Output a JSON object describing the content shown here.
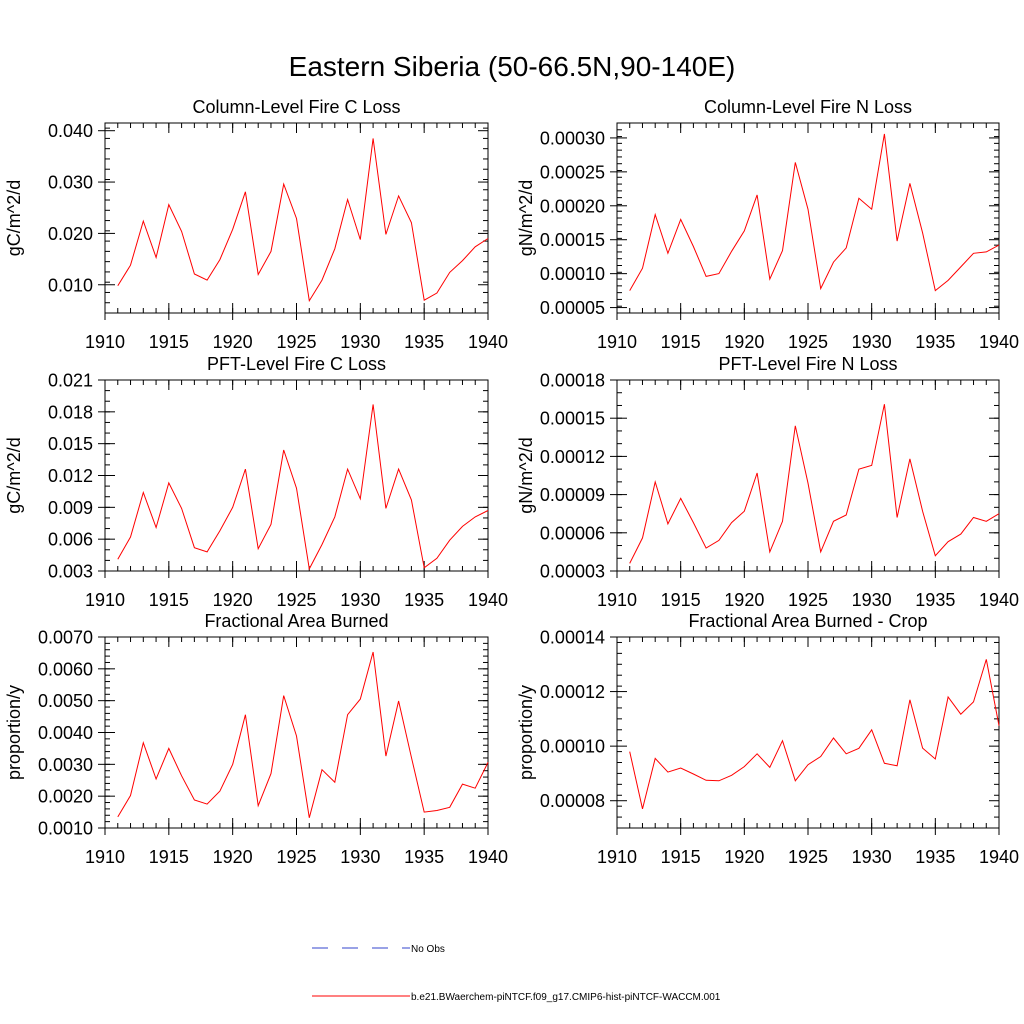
{
  "figure_title": "Eastern Siberia (50-66.5N,90-140E)",
  "legend": {
    "obs_label": "No Obs",
    "obs_color": "#3344cc",
    "model_label": "b.e21.BWaerchem-piNTCF.f09_g17.CMIP6-hist-piNTCF-WACCM.001",
    "model_color": "#ff0000"
  },
  "chart_data": [
    {
      "type": "line",
      "title": "Column-Level Fire C Loss",
      "ylabel": "gC/m^2/d",
      "xlim": [
        1910,
        1940
      ],
      "ylim": [
        0.0045,
        0.0415
      ],
      "xticks": [
        1910,
        1915,
        1920,
        1925,
        1930,
        1935,
        1940
      ],
      "xtick_labels": [
        "1910",
        "1915",
        "1920",
        "1925",
        "1930",
        "1935",
        "1940"
      ],
      "yticks": [
        0.01,
        0.02,
        0.03,
        0.04
      ],
      "ytick_labels": [
        "0.010",
        "0.020",
        "0.030",
        "0.040"
      ],
      "y_minor_step": 0.002,
      "x": [
        1911,
        1912,
        1913,
        1914,
        1915,
        1916,
        1917,
        1918,
        1919,
        1920,
        1921,
        1922,
        1923,
        1924,
        1925,
        1926,
        1927,
        1928,
        1929,
        1930,
        1931,
        1932,
        1933,
        1934,
        1935,
        1936,
        1937,
        1938,
        1939,
        1940
      ],
      "series": [
        {
          "name": "b.e21.BWaerchem-piNTCF.f09_g17.CMIP6-hist-piNTCF-WACCM.001",
          "color": "#ff0000",
          "values": [
            0.0098,
            0.0138,
            0.0224,
            0.0153,
            0.0256,
            0.0204,
            0.0121,
            0.0109,
            0.0149,
            0.0208,
            0.0281,
            0.012,
            0.0165,
            0.0296,
            0.0229,
            0.0069,
            0.0109,
            0.017,
            0.0266,
            0.0188,
            0.0385,
            0.0198,
            0.0273,
            0.0221,
            0.007,
            0.0084,
            0.0124,
            0.0147,
            0.0174,
            0.019
          ]
        }
      ]
    },
    {
      "type": "line",
      "title": "Column-Level Fire N Loss",
      "ylabel": "gN/m^2/d",
      "xlim": [
        1910,
        1940
      ],
      "ylim": [
        4.2e-05,
        0.000322
      ],
      "xticks": [
        1910,
        1915,
        1920,
        1925,
        1930,
        1935,
        1940
      ],
      "xtick_labels": [
        "1910",
        "1915",
        "1920",
        "1925",
        "1930",
        "1935",
        "1940"
      ],
      "yticks": [
        5e-05,
        0.0001,
        0.00015,
        0.0002,
        0.00025,
        0.0003
      ],
      "ytick_labels": [
        "0.00005",
        "0.00010",
        "0.00015",
        "0.00020",
        "0.00025",
        "0.00030"
      ],
      "y_minor_step": 1e-05,
      "x": [
        1911,
        1912,
        1913,
        1914,
        1915,
        1916,
        1917,
        1918,
        1919,
        1920,
        1921,
        1922,
        1923,
        1924,
        1925,
        1926,
        1927,
        1928,
        1929,
        1930,
        1931,
        1932,
        1933,
        1934,
        1935,
        1936,
        1937,
        1938,
        1939,
        1940
      ],
      "series": [
        {
          "name": "b.e21.BWaerchem-piNTCF.f09_g17.CMIP6-hist-piNTCF-WACCM.001",
          "color": "#ff0000",
          "values": [
            7.5e-05,
            0.000108,
            0.000187,
            0.00013,
            0.00018,
            0.00014,
            9.6e-05,
            0.0001,
            0.000133,
            0.000163,
            0.000216,
            9.2e-05,
            0.000134,
            0.000264,
            0.000195,
            7.8e-05,
            0.000117,
            0.000138,
            0.000211,
            0.000195,
            0.000306,
            0.000148,
            0.000233,
            0.00016,
            7.5e-05,
            9e-05,
            0.00011,
            0.00013,
            0.000132,
            0.000142
          ]
        }
      ]
    },
    {
      "type": "line",
      "title": "PFT-Level Fire C Loss",
      "ylabel": "gC/m^2/d",
      "xlim": [
        1910,
        1940
      ],
      "ylim": [
        0.003,
        0.021
      ],
      "xticks": [
        1910,
        1915,
        1920,
        1925,
        1930,
        1935,
        1940
      ],
      "xtick_labels": [
        "1910",
        "1915",
        "1920",
        "1925",
        "1930",
        "1935",
        "1940"
      ],
      "yticks": [
        0.003,
        0.006,
        0.009,
        0.012,
        0.015,
        0.018,
        0.021
      ],
      "ytick_labels": [
        "0.003",
        "0.006",
        "0.009",
        "0.012",
        "0.015",
        "0.018",
        "0.021"
      ],
      "y_minor_step": 0.001,
      "x": [
        1911,
        1912,
        1913,
        1914,
        1915,
        1916,
        1917,
        1918,
        1919,
        1920,
        1921,
        1922,
        1923,
        1924,
        1925,
        1926,
        1927,
        1928,
        1929,
        1930,
        1931,
        1932,
        1933,
        1934,
        1935,
        1936,
        1937,
        1938,
        1939,
        1940
      ],
      "series": [
        {
          "name": "b.e21.BWaerchem-piNTCF.f09_g17.CMIP6-hist-piNTCF-WACCM.001",
          "color": "#ff0000",
          "values": [
            0.0041,
            0.0062,
            0.0104,
            0.0071,
            0.0113,
            0.0089,
            0.0052,
            0.0048,
            0.0068,
            0.009,
            0.0126,
            0.0051,
            0.0074,
            0.0144,
            0.0108,
            0.0032,
            0.0055,
            0.0081,
            0.0126,
            0.0098,
            0.0187,
            0.0089,
            0.0126,
            0.0097,
            0.0033,
            0.0042,
            0.0059,
            0.0072,
            0.0081,
            0.0087
          ]
        }
      ]
    },
    {
      "type": "line",
      "title": "PFT-Level Fire N Loss",
      "ylabel": "gN/m^2/d",
      "xlim": [
        1910,
        1940
      ],
      "ylim": [
        3e-05,
        0.00018
      ],
      "xticks": [
        1910,
        1915,
        1920,
        1925,
        1930,
        1935,
        1940
      ],
      "xtick_labels": [
        "1910",
        "1915",
        "1920",
        "1925",
        "1930",
        "1935",
        "1940"
      ],
      "yticks": [
        3e-05,
        6e-05,
        9e-05,
        0.00012,
        0.00015,
        0.00018
      ],
      "ytick_labels": [
        "0.00003",
        "0.00006",
        "0.00009",
        "0.00012",
        "0.00015",
        "0.00018"
      ],
      "y_minor_step": 1e-05,
      "x": [
        1911,
        1912,
        1913,
        1914,
        1915,
        1916,
        1917,
        1918,
        1919,
        1920,
        1921,
        1922,
        1923,
        1924,
        1925,
        1926,
        1927,
        1928,
        1929,
        1930,
        1931,
        1932,
        1933,
        1934,
        1935,
        1936,
        1937,
        1938,
        1939,
        1940
      ],
      "series": [
        {
          "name": "b.e21.BWaerchem-piNTCF.f09_g17.CMIP6-hist-piNTCF-WACCM.001",
          "color": "#ff0000",
          "values": [
            3.6e-05,
            5.6e-05,
            0.0001,
            6.7e-05,
            8.7e-05,
            6.8e-05,
            4.8e-05,
            5.4e-05,
            6.8e-05,
            7.7e-05,
            0.000107,
            4.5e-05,
            6.9e-05,
            0.000144,
            9.9e-05,
            4.5e-05,
            6.9e-05,
            7.4e-05,
            0.00011,
            0.000113,
            0.000161,
            7.2e-05,
            0.000118,
            7.7e-05,
            4.2e-05,
            5.3e-05,
            5.9e-05,
            7.2e-05,
            6.9e-05,
            7.5e-05
          ]
        }
      ]
    },
    {
      "type": "line",
      "title": "Fractional Area Burned",
      "ylabel": "proportion/y",
      "xlim": [
        1910,
        1940
      ],
      "ylim": [
        0.001,
        0.007
      ],
      "xticks": [
        1910,
        1915,
        1920,
        1925,
        1930,
        1935,
        1940
      ],
      "xtick_labels": [
        "1910",
        "1915",
        "1920",
        "1925",
        "1930",
        "1935",
        "1940"
      ],
      "yticks": [
        0.001,
        0.002,
        0.003,
        0.004,
        0.005,
        0.006,
        0.007
      ],
      "ytick_labels": [
        "0.0010",
        "0.0020",
        "0.0030",
        "0.0040",
        "0.0050",
        "0.0060",
        "0.0070"
      ],
      "y_minor_step": 0.0002,
      "x": [
        1911,
        1912,
        1913,
        1914,
        1915,
        1916,
        1917,
        1918,
        1919,
        1920,
        1921,
        1922,
        1923,
        1924,
        1925,
        1926,
        1927,
        1928,
        1929,
        1930,
        1931,
        1932,
        1933,
        1934,
        1935,
        1936,
        1937,
        1938,
        1939,
        1940
      ],
      "series": [
        {
          "name": "b.e21.BWaerchem-piNTCF.f09_g17.CMIP6-hist-piNTCF-WACCM.001",
          "color": "#ff0000",
          "values": [
            0.00135,
            0.00202,
            0.00368,
            0.00254,
            0.0035,
            0.00264,
            0.00188,
            0.00175,
            0.00216,
            0.003,
            0.00456,
            0.0017,
            0.00271,
            0.00516,
            0.00389,
            0.00132,
            0.00283,
            0.00244,
            0.00456,
            0.00505,
            0.00653,
            0.00326,
            0.00499,
            0.00322,
            0.0015,
            0.00155,
            0.00165,
            0.00238,
            0.00225,
            0.00306
          ]
        }
      ]
    },
    {
      "type": "line",
      "title": "Fractional Area Burned - Crop",
      "ylabel": "proportion/y",
      "xlim": [
        1910,
        1940
      ],
      "ylim": [
        7e-05,
        0.00014
      ],
      "xticks": [
        1910,
        1915,
        1920,
        1925,
        1930,
        1935,
        1940
      ],
      "xtick_labels": [
        "1910",
        "1915",
        "1920",
        "1925",
        "1930",
        "1935",
        "1940"
      ],
      "yticks": [
        8e-05,
        0.0001,
        0.00012,
        0.00014
      ],
      "ytick_labels": [
        "0.00008",
        "0.00010",
        "0.00012",
        "0.00014"
      ],
      "y_minor_step": 4e-06,
      "x": [
        1911,
        1912,
        1913,
        1914,
        1915,
        1916,
        1917,
        1918,
        1919,
        1920,
        1921,
        1922,
        1923,
        1924,
        1925,
        1926,
        1927,
        1928,
        1929,
        1930,
        1931,
        1932,
        1933,
        1934,
        1935,
        1936,
        1937,
        1938,
        1939,
        1940
      ],
      "series": [
        {
          "name": "b.e21.BWaerchem-piNTCF.f09_g17.CMIP6-hist-piNTCF-WACCM.001",
          "color": "#ff0000",
          "values": [
            9.8e-05,
            7.7e-05,
            9.55e-05,
            9.05e-05,
            9.2e-05,
            8.98e-05,
            8.75e-05,
            8.73e-05,
            8.93e-05,
            9.25e-05,
            9.72e-05,
            9.22e-05,
            0.000102,
            8.73e-05,
            9.32e-05,
            9.62e-05,
            0.000103,
            9.72e-05,
            9.92e-05,
            0.000106,
            9.37e-05,
            9.28e-05,
            0.000117,
            9.93e-05,
            9.53e-05,
            0.000118,
            0.0001117,
            0.0001162,
            0.0001318,
            0.0001075
          ]
        }
      ]
    }
  ]
}
